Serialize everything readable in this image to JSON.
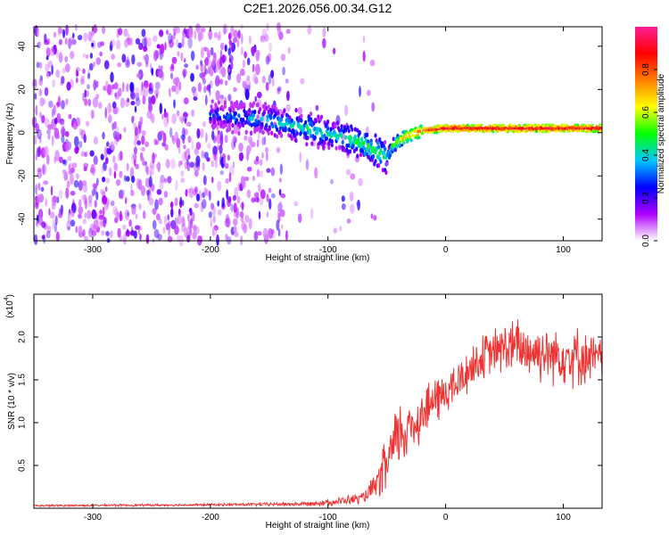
{
  "title": "C2E1.2026.056.00.34.G12",
  "chart_data": [
    {
      "type": "heatmap",
      "name": "spectrogram",
      "xlabel": "Height of straight line (km)",
      "ylabel": "Frequency (Hz)",
      "xlim": [
        -350,
        133
      ],
      "ylim": [
        -50,
        49
      ],
      "xticks": [
        -300,
        -200,
        -100,
        0,
        100
      ],
      "yticks": [
        -40,
        -20,
        0,
        20,
        40
      ],
      "colorbar": {
        "label": "Normalized spectral amplitude",
        "range": [
          0,
          1
        ],
        "ticks": [
          0.0,
          0.2,
          0.4,
          0.6,
          0.8
        ],
        "colors": [
          "#ffffff",
          "#b000ff",
          "#0000ff",
          "#00c8ff",
          "#00ff00",
          "#ffff00",
          "#ff8000",
          "#ff0000",
          "#ff1e96"
        ]
      },
      "trace": {
        "x": [
          -195,
          -150,
          -120,
          -90,
          -70,
          -55,
          -50,
          -45,
          -35,
          -20,
          0,
          50,
          100,
          133
        ],
        "y": [
          8,
          6,
          2,
          -2,
          -5,
          -10,
          -12,
          -6,
          -2,
          1,
          2,
          2,
          2,
          2
        ],
        "strength": [
          0.35,
          0.45,
          0.5,
          0.5,
          0.55,
          0.55,
          0.5,
          0.6,
          0.75,
          0.85,
          0.95,
          0.95,
          0.95,
          0.95
        ]
      }
    },
    {
      "type": "line",
      "name": "snr",
      "xlabel": "Height of straight line (km)",
      "ylabel": "SNR (10 * v/v)",
      "scale_label_base": "(x10",
      "scale_label_exp": "4",
      "scale_label_end": ")",
      "xlim": [
        -350,
        133
      ],
      "ylim": [
        0,
        2.5
      ],
      "xticks": [
        -300,
        -200,
        -100,
        0,
        100
      ],
      "yticks": [
        0.5,
        1.0,
        1.5,
        2.0
      ],
      "ytick_labels": [
        "0.5",
        "1.0",
        "1.5",
        "2.0"
      ],
      "color": "#ee3333",
      "envelope": {
        "x": [
          -350,
          -200,
          -120,
          -90,
          -70,
          -60,
          -50,
          -40,
          -30,
          -20,
          -10,
          0,
          10,
          20,
          30,
          40,
          50,
          60,
          70,
          80,
          90,
          100,
          110,
          120,
          133
        ],
        "mean": [
          0.03,
          0.04,
          0.05,
          0.08,
          0.12,
          0.25,
          0.5,
          0.85,
          0.95,
          1.1,
          1.25,
          1.35,
          1.45,
          1.62,
          1.75,
          1.82,
          1.88,
          1.88,
          1.85,
          1.82,
          1.8,
          1.8,
          1.78,
          1.75,
          1.75
        ],
        "spread": [
          0.01,
          0.012,
          0.02,
          0.04,
          0.06,
          0.12,
          0.3,
          0.35,
          0.3,
          0.25,
          0.25,
          0.22,
          0.22,
          0.22,
          0.22,
          0.22,
          0.26,
          0.28,
          0.3,
          0.28,
          0.28,
          0.3,
          0.3,
          0.25,
          0.2
        ]
      }
    }
  ]
}
